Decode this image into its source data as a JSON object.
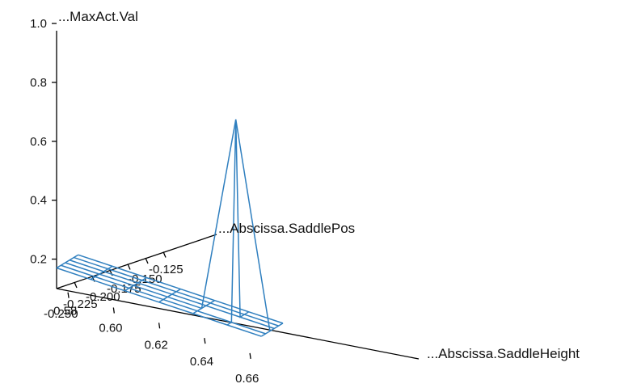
{
  "chart_data": {
    "type": "surface3d",
    "title": "",
    "zlabel": "...MaxAct.Val",
    "xlabel": "...Abscissa.SaddleHeight",
    "ylabel": "...Abscissa.SaddlePos",
    "z_ticks": [
      "0.2",
      "0.4",
      "0.6",
      "0.8",
      "1.0"
    ],
    "x_ticks": [
      "0.58",
      "0.60",
      "0.62",
      "0.64",
      "0.66"
    ],
    "y_ticks": [
      "-0.250",
      "-0.225",
      "-0.200",
      "-0.175",
      "-0.150",
      "-0.125"
    ],
    "zlim": [
      0.1,
      1.0
    ],
    "x_grid": [
      0.575,
      0.59,
      0.605,
      0.62,
      0.635,
      0.65,
      0.665
    ],
    "y_grid": [
      -0.25,
      -0.225,
      -0.2,
      -0.175,
      -0.15,
      -0.125
    ],
    "z_values": [
      [
        0.17,
        0.17,
        0.17,
        0.17,
        0.17,
        0.17
      ],
      [
        0.17,
        0.17,
        0.17,
        0.17,
        0.17,
        0.17
      ],
      [
        0.17,
        0.17,
        0.17,
        0.17,
        0.17,
        0.17
      ],
      [
        0.17,
        0.17,
        0.17,
        0.17,
        0.17,
        0.17
      ],
      [
        0.17,
        0.17,
        0.17,
        0.17,
        0.17,
        0.17
      ],
      [
        0.17,
        0.17,
        0.85,
        0.17,
        0.17,
        0.17
      ],
      [
        0.17,
        0.17,
        0.17,
        0.17,
        0.17,
        0.17
      ]
    ],
    "color": "#2f7fbf",
    "grid": false,
    "legend": "none"
  }
}
